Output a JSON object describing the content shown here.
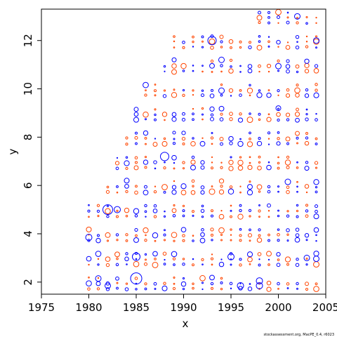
{
  "chart_data": {
    "type": "scatter",
    "title": "",
    "xlabel": "x",
    "ylabel": "y",
    "xlim": [
      1975,
      2005
    ],
    "ylim": [
      1.5,
      13.3
    ],
    "xticks": [
      1975,
      1980,
      1985,
      1990,
      1995,
      2000,
      2005
    ],
    "yticks": [
      2,
      4,
      6,
      8,
      10,
      12
    ],
    "grid": false,
    "legend": "none",
    "x_range": [
      1980,
      2004
    ],
    "y_range": [
      2,
      13
    ],
    "cohort_start_year": 1980,
    "marker": "open-circle",
    "colors": {
      "positive": "#0000ff",
      "negative": "#ff4500"
    },
    "note": "bubble plot of residuals by year (x) and age (y); circle size proportional to residual magnitude",
    "large_points": [
      {
        "x": 1980,
        "y": 3.85,
        "size": 4.5,
        "sign": "positive"
      },
      {
        "x": 1981,
        "y": 2.15,
        "size": 4.0,
        "sign": "positive"
      },
      {
        "x": 1982,
        "y": 5.0,
        "size": 7.0,
        "sign": "positive"
      },
      {
        "x": 1982,
        "y": 1.85,
        "size": 4.0,
        "sign": "positive"
      },
      {
        "x": 1983,
        "y": 5.0,
        "size": 4.5,
        "sign": "positive"
      },
      {
        "x": 1984,
        "y": 6.2,
        "size": 3.5,
        "sign": "positive"
      },
      {
        "x": 1985,
        "y": 3.05,
        "size": 5.5,
        "sign": "positive"
      },
      {
        "x": 1985,
        "y": 2.15,
        "size": 8.0,
        "sign": "positive"
      },
      {
        "x": 1985,
        "y": 9.15,
        "size": 3.0,
        "sign": "positive"
      },
      {
        "x": 1988,
        "y": 7.2,
        "size": 6.0,
        "sign": "positive"
      },
      {
        "x": 1989,
        "y": 11.2,
        "size": 3.0,
        "sign": "positive"
      },
      {
        "x": 1993,
        "y": 12.0,
        "size": 6.0,
        "sign": "positive"
      },
      {
        "x": 1994,
        "y": 11.2,
        "size": 4.0,
        "sign": "positive"
      },
      {
        "x": 1995,
        "y": 3.05,
        "size": 4.5,
        "sign": "positive"
      },
      {
        "x": 1996,
        "y": 1.85,
        "size": 4.5,
        "sign": "positive"
      },
      {
        "x": 1998,
        "y": 2.05,
        "size": 4.5,
        "sign": "positive"
      },
      {
        "x": 1998,
        "y": 1.85,
        "size": 4.5,
        "sign": "positive"
      },
      {
        "x": 2000,
        "y": 9.2,
        "size": 3.5,
        "sign": "positive"
      },
      {
        "x": 2001,
        "y": 6.15,
        "size": 4.0,
        "sign": "positive"
      },
      {
        "x": 2002,
        "y": 13.0,
        "size": 4.0,
        "sign": "positive"
      },
      {
        "x": 2003,
        "y": 3.0,
        "size": 4.0,
        "sign": "positive"
      },
      {
        "x": 2004,
        "y": 12.0,
        "size": 4.0,
        "sign": "positive"
      }
    ]
  },
  "credit": "stockassessment.org, MacPE_0.4, r6023"
}
